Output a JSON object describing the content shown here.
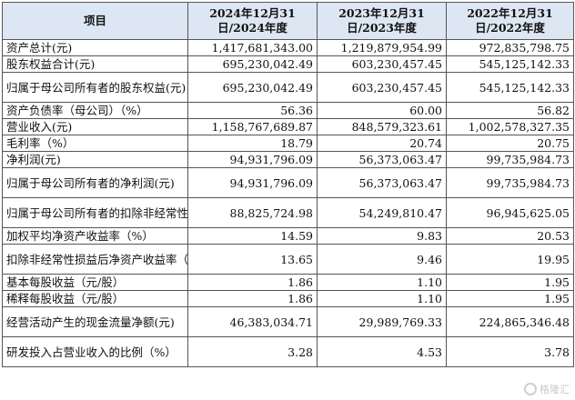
{
  "table": {
    "headers": [
      "项目",
      "2024年12月31日/2024年度",
      "2023年12月31日/2023年度",
      "2022年12月31日/2022年度"
    ],
    "rows": [
      {
        "label": "资产总计(元)",
        "values": [
          "1,417,681,343.00",
          "1,219,879,954.99",
          "972,835,798.75"
        ],
        "tall": false
      },
      {
        "label": "股东权益合计(元)",
        "values": [
          "695,230,042.49",
          "603,230,457.45",
          "545,125,142.33"
        ],
        "tall": false
      },
      {
        "label": "归属于母公司所有者的股东权益(元)",
        "values": [
          "695,230,042.49",
          "603,230,457.45",
          "545,125,142.33"
        ],
        "tall": true
      },
      {
        "label": "资产负债率（母公司）（%）",
        "values": [
          "56.36",
          "60.00",
          "56.82"
        ],
        "tall": false
      },
      {
        "label": "营业收入(元)",
        "values": [
          "1,158,767,689.87",
          "848,579,323.61",
          "1,002,578,327.35"
        ],
        "tall": false
      },
      {
        "label": "毛利率（%）",
        "values": [
          "18.79",
          "20.74",
          "20.75"
        ],
        "tall": false
      },
      {
        "label": "净利润(元)",
        "values": [
          "94,931,796.09",
          "56,373,063.47",
          "99,735,984.73"
        ],
        "tall": false
      },
      {
        "label": "归属于母公司所有者的净利润(元)",
        "values": [
          "94,931,796.09",
          "56,373,063.47",
          "99,735,984.73"
        ],
        "tall": true
      },
      {
        "label": "归属于母公司所有者的扣除非经常性损益后的净利润(元)",
        "values": [
          "88,825,724.98",
          "54,249,810.47",
          "96,945,625.05"
        ],
        "tall": true
      },
      {
        "label": "加权平均净资产收益率（%）",
        "values": [
          "14.59",
          "9.83",
          "20.53"
        ],
        "tall": false
      },
      {
        "label": "扣除非经常性损益后净资产收益率（%）",
        "values": [
          "13.65",
          "9.46",
          "19.95"
        ],
        "tall": true
      },
      {
        "label": "基本每股收益（元/股）",
        "values": [
          "1.86",
          "1.10",
          "1.95"
        ],
        "tall": false
      },
      {
        "label": "稀释每股收益（元/股）",
        "values": [
          "1.86",
          "1.10",
          "1.95"
        ],
        "tall": false
      },
      {
        "label": "经营活动产生的现金流量净额(元)",
        "values": [
          "46,383,034.71",
          "29,989,769.33",
          "224,865,346.48"
        ],
        "tall": true
      },
      {
        "label": "研发投入占营业收入的比例（%）",
        "values": [
          "3.28",
          "4.53",
          "3.78"
        ],
        "tall": true
      }
    ]
  },
  "watermark": {
    "icon": "gelonghui-logo-icon",
    "text": "格隆汇"
  }
}
